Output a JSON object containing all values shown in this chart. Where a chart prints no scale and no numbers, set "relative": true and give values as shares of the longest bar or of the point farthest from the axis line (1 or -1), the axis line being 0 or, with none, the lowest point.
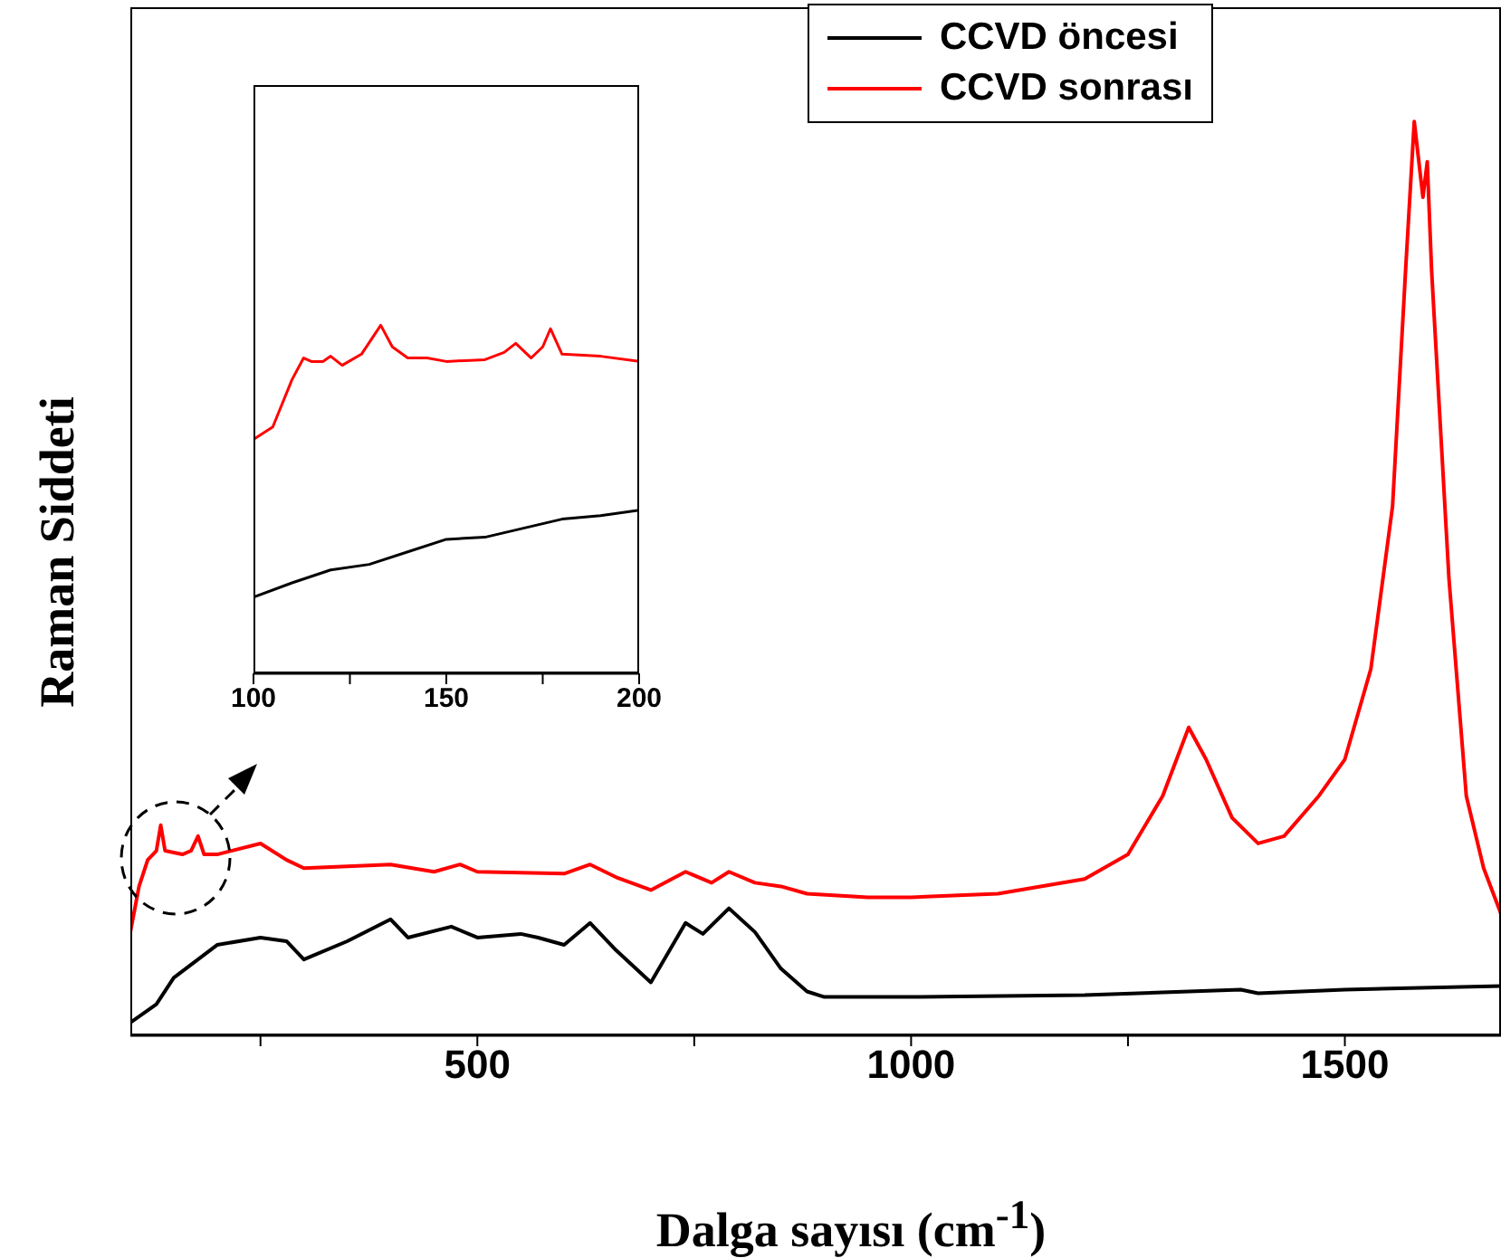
{
  "chart_data": [
    {
      "type": "line",
      "relative": true,
      "xlabel": "Dalga sayısı (cm$^{-1}$)",
      "ylabel": "Raman Siddeti",
      "xlim": [
        100,
        1680
      ],
      "xticks": [
        {
          "value": 250,
          "label": null
        },
        500,
        {
          "value": 750,
          "label": null
        },
        1000,
        {
          "value": 1250,
          "label": null
        },
        1500
      ],
      "legend": "top right",
      "series": [
        {
          "name": "CCVD öncesi",
          "color": "#000000",
          "x": [
            100,
            130,
            150,
            200,
            250,
            280,
            300,
            350,
            400,
            420,
            470,
            500,
            550,
            570,
            600,
            630,
            660,
            700,
            740,
            760,
            790,
            820,
            850,
            880,
            900,
            1000,
            1200,
            1380,
            1400,
            1500,
            1680
          ],
          "values": [
            0.014,
            0.034,
            0.063,
            0.099,
            0.107,
            0.103,
            0.083,
            0.103,
            0.127,
            0.107,
            0.119,
            0.107,
            0.111,
            0.107,
            0.099,
            0.123,
            0.093,
            0.058,
            0.123,
            0.111,
            0.139,
            0.113,
            0.073,
            0.048,
            0.042,
            0.042,
            0.044,
            0.05,
            0.046,
            0.05,
            0.054
          ]
        },
        {
          "name": "CCVD sonrası",
          "color": "#ff0000",
          "x": [
            100,
            110,
            120,
            130,
            135,
            140,
            160,
            170,
            178,
            185,
            200,
            250,
            280,
            300,
            400,
            450,
            480,
            500,
            600,
            630,
            660,
            700,
            740,
            770,
            790,
            820,
            850,
            880,
            950,
            1000,
            1100,
            1200,
            1250,
            1290,
            1320,
            1340,
            1370,
            1400,
            1430,
            1470,
            1500,
            1530,
            1555,
            1570,
            1580,
            1590,
            1595,
            1600,
            1620,
            1640,
            1660,
            1680
          ],
          "values": [
            0.113,
            0.163,
            0.192,
            0.202,
            0.23,
            0.202,
            0.198,
            0.202,
            0.218,
            0.198,
            0.198,
            0.21,
            0.192,
            0.183,
            0.187,
            0.179,
            0.187,
            0.179,
            0.177,
            0.187,
            0.173,
            0.159,
            0.179,
            0.167,
            0.179,
            0.167,
            0.163,
            0.155,
            0.151,
            0.151,
            0.155,
            0.171,
            0.198,
            0.262,
            0.337,
            0.302,
            0.238,
            0.21,
            0.218,
            0.262,
            0.302,
            0.401,
            0.579,
            0.837,
            1.0,
            0.917,
            0.956,
            0.837,
            0.5,
            0.262,
            0.183,
            0.133
          ]
        }
      ]
    },
    {
      "type": "line",
      "relative": true,
      "xlim": [
        100,
        200
      ],
      "xticks": [
        100,
        {
          "value": 125,
          "label": null
        },
        150,
        {
          "value": 175,
          "label": null
        },
        200
      ],
      "series": [
        {
          "color": "#000000",
          "x": [
            100,
            110,
            120,
            130,
            140,
            150,
            160,
            170,
            180,
            190,
            200
          ],
          "values": [
            0.219,
            0.26,
            0.297,
            0.313,
            0.349,
            0.385,
            0.391,
            0.417,
            0.443,
            0.453,
            0.469
          ]
        },
        {
          "color": "#ff0000",
          "x": [
            100,
            105,
            110,
            113,
            115,
            118,
            120,
            123,
            128,
            133,
            136,
            140,
            145,
            150,
            160,
            165,
            168,
            172,
            175,
            177,
            180,
            190,
            200
          ],
          "values": [
            0.672,
            0.708,
            0.844,
            0.906,
            0.896,
            0.896,
            0.911,
            0.885,
            0.917,
            1.0,
            0.938,
            0.906,
            0.906,
            0.896,
            0.901,
            0.922,
            0.948,
            0.906,
            0.938,
            0.99,
            0.917,
            0.911,
            0.896
          ]
        }
      ]
    }
  ]
}
